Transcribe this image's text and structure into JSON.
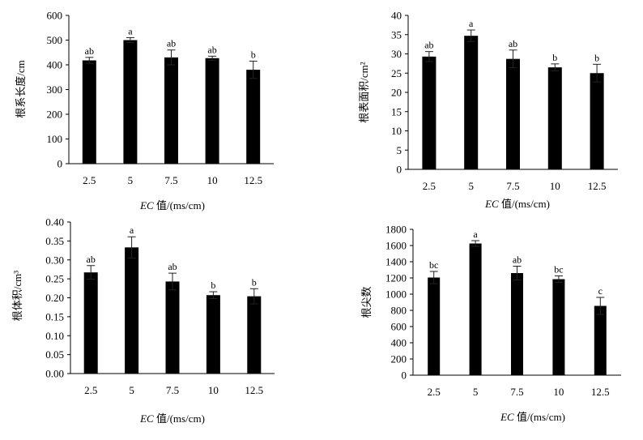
{
  "x_title": {
    "italic": "EC",
    "rest": " 值/(ms/cm)"
  },
  "chart_data": [
    {
      "type": "bar",
      "categories": [
        "2.5",
        "5",
        "7.5",
        "10",
        "12.5"
      ],
      "values": [
        418,
        500,
        430,
        427,
        380
      ],
      "errors": [
        12,
        10,
        30,
        8,
        35
      ],
      "letters": [
        "ab",
        "a",
        "ab",
        "ab",
        "b"
      ],
      "ylabel": "根系长度/cm",
      "yticks": [
        "0",
        "100",
        "200",
        "300",
        "400",
        "500",
        "600"
      ],
      "ylim": [
        0,
        600
      ],
      "bar_color": "#000000"
    },
    {
      "type": "bar",
      "categories": [
        "2.5",
        "5",
        "7.5",
        "10",
        "12.5"
      ],
      "values": [
        29.3,
        34.7,
        28.7,
        26.5,
        25.0
      ],
      "errors": [
        1.3,
        1.5,
        2.3,
        0.9,
        2.3
      ],
      "letters": [
        "ab",
        "a",
        "ab",
        "b",
        "b"
      ],
      "ylabel": "根表面积/cm²",
      "yticks": [
        "0",
        "5",
        "10",
        "15",
        "20",
        "25",
        "30",
        "35",
        "40"
      ],
      "ylim": [
        0,
        40
      ],
      "bar_color": "#000000"
    },
    {
      "type": "bar",
      "categories": [
        "2.5",
        "5",
        "7.5",
        "10",
        "12.5"
      ],
      "values": [
        0.267,
        0.333,
        0.243,
        0.207,
        0.204
      ],
      "errors": [
        0.018,
        0.028,
        0.022,
        0.009,
        0.02
      ],
      "letters": [
        "ab",
        "a",
        "ab",
        "b",
        "b"
      ],
      "ylabel": "根体积/cm³",
      "yticks": [
        "0.00",
        "0.05",
        "0.10",
        "0.15",
        "0.20",
        "0.25",
        "0.30",
        "0.35",
        "0.40"
      ],
      "ylim": [
        0,
        0.4
      ],
      "bar_color": "#000000"
    },
    {
      "type": "bar",
      "categories": [
        "2.5",
        "5",
        "7.5",
        "10",
        "12.5"
      ],
      "values": [
        1205,
        1625,
        1260,
        1185,
        855
      ],
      "errors": [
        75,
        35,
        85,
        40,
        105
      ],
      "letters": [
        "bc",
        "a",
        "ab",
        "bc",
        "c"
      ],
      "ylabel": "根尖数",
      "yticks": [
        "0",
        "200",
        "400",
        "600",
        "800",
        "1000",
        "1200",
        "1400",
        "1600",
        "1800"
      ],
      "ylim": [
        0,
        1800
      ],
      "bar_color": "#000000"
    }
  ]
}
